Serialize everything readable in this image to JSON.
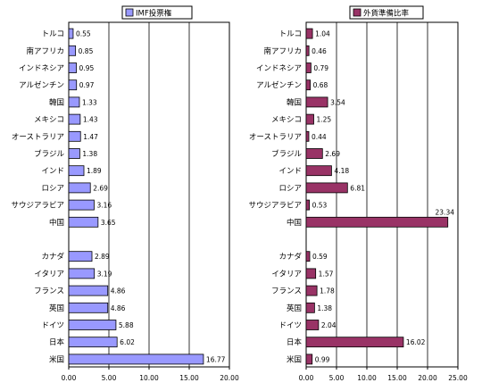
{
  "chart_data": [
    {
      "type": "bar",
      "orientation": "horizontal",
      "legend": "IMF投票権",
      "color": "#9999ff",
      "xlim": [
        0,
        20
      ],
      "xticks": [
        "0.00",
        "5.00",
        "10.00",
        "15.00",
        "20.00"
      ],
      "groups": [
        {
          "categories": [
            "トルコ",
            "南アフリカ",
            "インドネシア",
            "アルゼンチン",
            "韓国",
            "メキシコ",
            "オーストラリア",
            "ブラジル",
            "インド",
            "ロシア",
            "サウジアラビア",
            "中国"
          ],
          "values": [
            0.55,
            0.85,
            0.95,
            0.97,
            1.33,
            1.43,
            1.47,
            1.38,
            1.89,
            2.69,
            3.16,
            3.65
          ],
          "labels": [
            "0.55",
            "0.85",
            "0.95",
            "0.97",
            "1.33",
            "1.43",
            "1.47",
            "1.38",
            "1.89",
            "2.69",
            "3.16",
            "3.65"
          ]
        },
        {
          "categories": [
            "カナダ",
            "イタリア",
            "フランス",
            "英国",
            "ドイツ",
            "日本",
            "米国"
          ],
          "values": [
            2.89,
            3.19,
            4.86,
            4.86,
            5.88,
            6.02,
            16.77
          ],
          "labels": [
            "2.89",
            "3.19",
            "4.86",
            "4.86",
            "5.88",
            "6.02",
            "16.77"
          ]
        }
      ]
    },
    {
      "type": "bar",
      "orientation": "horizontal",
      "legend": "外貨準備比率",
      "color": "#993366",
      "xlim": [
        0,
        25
      ],
      "xticks": [
        "0.00",
        "5.00",
        "10.00",
        "15.00",
        "20.00",
        "25.00"
      ],
      "groups": [
        {
          "categories": [
            "トルコ",
            "南アフリカ",
            "インドネシア",
            "アルゼンチン",
            "韓国",
            "メキシコ",
            "オーストラリア",
            "ブラジル",
            "インド",
            "ロシア",
            "サウジアラビア",
            "中国"
          ],
          "values": [
            1.04,
            0.46,
            0.79,
            0.68,
            3.54,
            1.25,
            0.44,
            2.69,
            4.18,
            6.81,
            0.53,
            23.34
          ],
          "labels": [
            "1.04",
            "0.46",
            "0.79",
            "0.68",
            "3.54",
            "1.25",
            "0.44",
            "2.69",
            "4.18",
            "6.81",
            "0.53",
            "23.34"
          ]
        },
        {
          "categories": [
            "カナダ",
            "イタリア",
            "フランス",
            "英国",
            "ドイツ",
            "日本",
            "米国"
          ],
          "values": [
            0.59,
            1.57,
            1.78,
            1.38,
            2.04,
            16.02,
            0.99
          ],
          "labels": [
            "0.59",
            "1.57",
            "1.78",
            "1.38",
            "2.04",
            "16.02",
            "0.99"
          ]
        }
      ]
    }
  ]
}
